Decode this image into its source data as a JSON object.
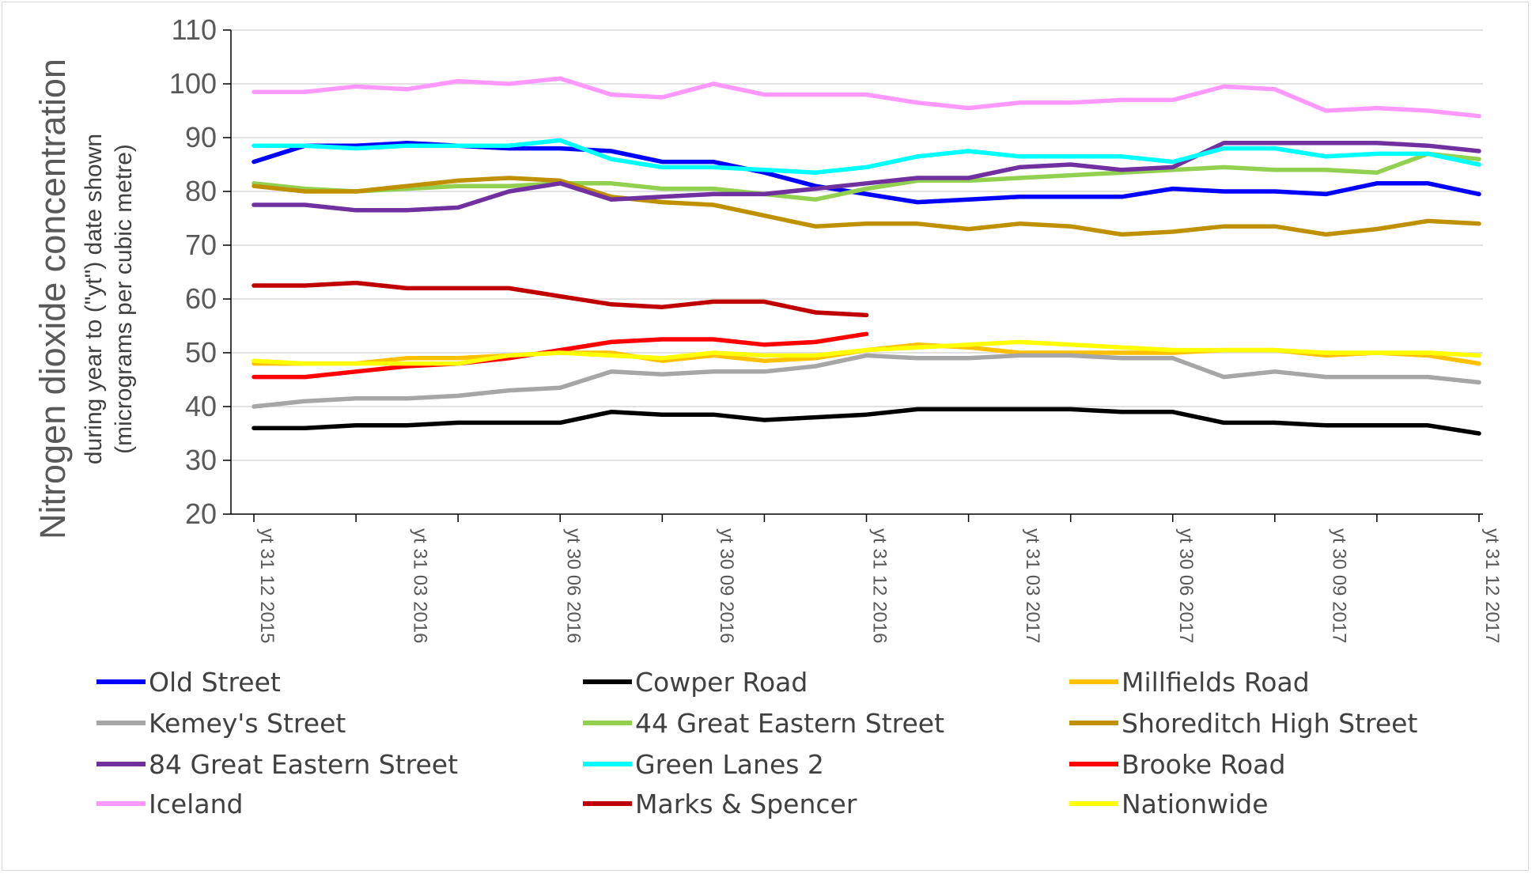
{
  "chart_data": {
    "type": "line",
    "ylabel_main": "Nitrogen dioxide concentration",
    "ylabel_sub1": "during year to (\"yt\") date shown",
    "ylabel_sub2": "(micrograms per cubic metre)",
    "ylim": [
      20,
      110
    ],
    "y_ticks": [
      20,
      30,
      40,
      50,
      60,
      70,
      80,
      90,
      100,
      110
    ],
    "grid": "horizontal",
    "legend_position": "bottom",
    "x_tick_labels": [
      "yt 31 12 2015",
      "yt 31 03 2016",
      "yt 30 06 2016",
      "yt 30 09 2016",
      "yt 31 12 2016",
      "yt 31 03 2017",
      "yt 30 06 2017",
      "yt 30 09 2017",
      "yt 31 12 2017"
    ],
    "x": [
      "Dec 2015",
      "Jan 2016",
      "Feb 2016",
      "Mar 2016",
      "Apr 2016",
      "May 2016",
      "Jun 2016",
      "Jul 2016",
      "Aug 2016",
      "Sep 2016",
      "Oct 2016",
      "Nov 2016",
      "Dec 2016",
      "Jan 2017",
      "Feb 2017",
      "Mar 2017",
      "Apr 2017",
      "May 2017",
      "Jun 2017",
      "Jul 2017",
      "Aug 2017",
      "Sep 2017",
      "Oct 2017",
      "Nov 2017",
      "Dec 2017"
    ],
    "series": [
      {
        "name": "Old Street",
        "color": "#0000ff",
        "values": [
          85.5,
          88.5,
          88.5,
          89,
          88.5,
          88,
          88,
          87.5,
          85.5,
          85.5,
          83.5,
          81,
          79.5,
          78,
          78.5,
          79,
          79,
          79,
          80.5,
          80,
          80,
          79.5,
          81.5,
          81.5,
          79.5
        ]
      },
      {
        "name": "Cowper Road",
        "color": "#000000",
        "values": [
          36,
          36,
          36.5,
          36.5,
          37,
          37,
          37,
          39,
          38.5,
          38.5,
          37.5,
          38,
          38.5,
          39.5,
          39.5,
          39.5,
          39.5,
          39,
          39,
          37,
          37,
          36.5,
          36.5,
          36.5,
          35
        ]
      },
      {
        "name": "Millfields Road",
        "color": "#ffc000",
        "values": [
          48,
          48,
          48,
          49,
          49,
          49.5,
          50,
          50,
          48.5,
          49.5,
          48.5,
          49,
          50.5,
          51.5,
          51,
          50,
          50,
          50,
          50,
          50.5,
          50.5,
          49.5,
          50,
          49.5,
          48
        ]
      },
      {
        "name": "Kemey's Street",
        "color": "#a6a6a6",
        "values": [
          40,
          41,
          41.5,
          41.5,
          42,
          43,
          43.5,
          46.5,
          46,
          46.5,
          46.5,
          47.5,
          49.5,
          49,
          49,
          49.5,
          49.5,
          49,
          49,
          45.5,
          46.5,
          45.5,
          45.5,
          45.5,
          44.5
        ]
      },
      {
        "name": "44 Great Eastern Street",
        "color": "#92d050",
        "values": [
          81.5,
          80.5,
          80,
          80.5,
          81,
          81,
          81.5,
          81.5,
          80.5,
          80.5,
          79.5,
          78.5,
          80.5,
          82,
          82,
          82.5,
          83,
          83.5,
          84,
          84.5,
          84,
          84,
          83.5,
          87,
          86
        ]
      },
      {
        "name": "Shoreditch High Street",
        "color": "#bf9000",
        "values": [
          81,
          80,
          80,
          81,
          82,
          82.5,
          82,
          79,
          78,
          77.5,
          75.5,
          73.5,
          74,
          74,
          73,
          74,
          73.5,
          72,
          72.5,
          73.5,
          73.5,
          72,
          73,
          74.5,
          74
        ]
      },
      {
        "name": "84 Great Eastern Street",
        "color": "#7030a0",
        "values": [
          77.5,
          77.5,
          76.5,
          76.5,
          77,
          80,
          81.5,
          78.5,
          79,
          79.5,
          79.5,
          80.5,
          81.5,
          82.5,
          82.5,
          84.5,
          85,
          84,
          84.5,
          89,
          89,
          89,
          89,
          88.5,
          87.5
        ]
      },
      {
        "name": "Green Lanes 2",
        "color": "#00ffff",
        "values": [
          88.5,
          88.5,
          88,
          88.5,
          88.5,
          88.5,
          89.5,
          86,
          84.5,
          84.5,
          84,
          83.5,
          84.5,
          86.5,
          87.5,
          86.5,
          86.5,
          86.5,
          85.5,
          88,
          88,
          86.5,
          87,
          87,
          85
        ]
      },
      {
        "name": "Brooke Road",
        "color": "#ff0000",
        "values": [
          45.5,
          45.5,
          46.5,
          47.5,
          48,
          49,
          50.5,
          52,
          52.5,
          52.5,
          51.5,
          52,
          53.5,
          null,
          null,
          null,
          null,
          null,
          null,
          null,
          null,
          null,
          null,
          null,
          null
        ]
      },
      {
        "name": "Iceland",
        "color": "#ff99ff",
        "values": [
          98.5,
          98.5,
          99.5,
          99,
          100.5,
          100,
          101,
          98,
          97.5,
          100,
          98,
          98,
          98,
          96.5,
          95.5,
          96.5,
          96.5,
          97,
          97,
          99.5,
          99,
          95,
          95.5,
          95,
          94
        ]
      },
      {
        "name": "Marks & Spencer",
        "color": "#c00000",
        "values": [
          62.5,
          62.5,
          63,
          62,
          62,
          62,
          60.5,
          59,
          58.5,
          59.5,
          59.5,
          57.5,
          57,
          null,
          null,
          null,
          null,
          null,
          null,
          null,
          null,
          null,
          null,
          null,
          null
        ]
      },
      {
        "name": "Nationwide",
        "color": "#ffff00",
        "values": [
          48.5,
          48,
          48,
          48,
          48,
          49.5,
          50,
          49.5,
          49,
          50,
          49.5,
          49.5,
          50.5,
          51,
          51.5,
          52,
          51.5,
          51,
          50.5,
          50.5,
          50.5,
          50,
          50,
          50,
          49.5
        ]
      }
    ]
  }
}
